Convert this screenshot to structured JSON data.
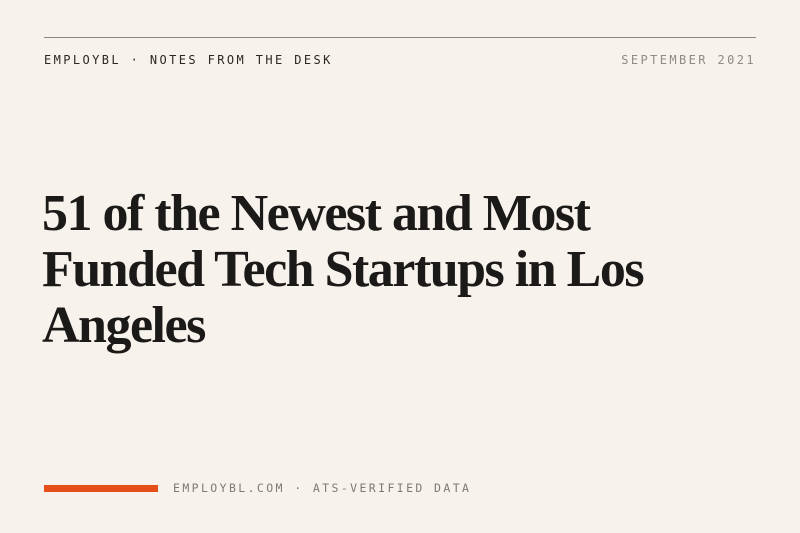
{
  "header": {
    "left": "EMPLOYBL · NOTES FROM THE DESK",
    "right": "SEPTEMBER 2021"
  },
  "title": "51 of the Newest and Most Funded Tech Startups in Los Angeles",
  "footer": {
    "text": "EMPLOYBL.COM · ATS-VERIFIED DATA"
  }
}
